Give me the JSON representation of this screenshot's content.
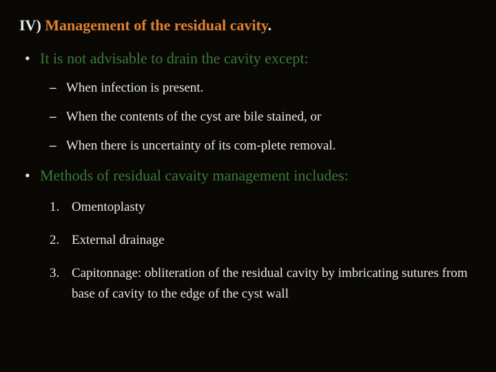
{
  "colors": {
    "background": "#0a0805",
    "body_text": "#e8e8e8",
    "accent_orange": "#e08030",
    "accent_green": "#3a7a3a"
  },
  "typography": {
    "font_family": "Times New Roman",
    "title_fontsize_pt": 17,
    "bullet_fontsize_pt": 17,
    "sub_fontsize_pt": 14
  },
  "title": {
    "prefix": "IV) ",
    "main": "Management of the residual cavity",
    "suffix": "."
  },
  "bullets": [
    {
      "marker": "•",
      "text": "It is not advisable to drain the cavity except:",
      "color": "green",
      "sub_dash": [
        {
          "marker": "–",
          "text": "When infection is present."
        },
        {
          "marker": "–",
          "text": "When the contents of the cyst are bile stained, or"
        },
        {
          "marker": "–",
          "text": "When there is uncertainty of its com-plete removal."
        }
      ]
    },
    {
      "marker": "•",
      "text": "Methods of residual cavaity management includes:",
      "color": "green",
      "sub_num": [
        {
          "marker": "1.",
          "text": "Omentoplasty"
        },
        {
          "marker": "2.",
          "text": "External drainage"
        },
        {
          "marker": "3.",
          "text": "Capitonnage: obliteration of the residual cavity by imbricating sutures from base of cavity to the edge of the cyst wall"
        }
      ]
    }
  ]
}
